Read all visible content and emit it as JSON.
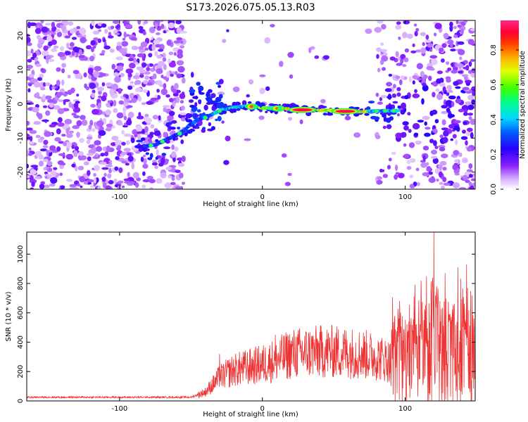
{
  "title": "S173.2026.075.05.13.R03",
  "chart_data": [
    {
      "type": "heatmap",
      "xlabel": "Height of straight line (km)",
      "ylabel": "Frequency (Hz)",
      "xlim": [
        -165,
        149
      ],
      "ylim": [
        -25,
        24.5
      ],
      "xticks": [
        -100,
        0,
        100
      ],
      "yticks": [
        -20,
        -10,
        0,
        10,
        20
      ],
      "colorbar": {
        "label": "Normalized spectral amplitude",
        "range": [
          0,
          0.97
        ],
        "ticks": [
          0.0,
          0.2,
          0.4,
          0.6,
          0.8
        ],
        "colors": [
          "#ffffff",
          "#b060ff",
          "#4000ff",
          "#0040ff",
          "#00e0ff",
          "#00ff40",
          "#ffff00",
          "#ff8000",
          "#ff0000",
          "#ff0060",
          "#ff2090"
        ]
      },
      "ridge": {
        "description": "dominant frequency ridge",
        "x": [
          -85,
          -75,
          -65,
          -57,
          -50,
          -45,
          -40,
          -35,
          -30,
          -25,
          -20,
          -15,
          -10,
          -5,
          0,
          10,
          20,
          30,
          40,
          50,
          60,
          70,
          75,
          80,
          85,
          90
        ],
        "y": [
          -12.5,
          -12,
          -10,
          -8.5,
          -6,
          -4.5,
          -4,
          -3,
          -2,
          -1.5,
          -1,
          -0.8,
          -0.7,
          -0.8,
          -1.2,
          -1.3,
          -1.5,
          -1.8,
          -1.8,
          -2,
          -2.2,
          -2.3,
          -2.2,
          -2.1,
          -2,
          -2
        ]
      },
      "peak": {
        "x": [
          20,
          70
        ],
        "y": [
          -1.6,
          -2.3
        ],
        "amplitude": 0.95
      }
    },
    {
      "type": "line",
      "xlabel": "Height of straight line (km)",
      "ylabel": "SNR (10 * v/v)",
      "xlim": [
        -165,
        149
      ],
      "ylim": [
        0,
        1150
      ],
      "xticks": [
        -100,
        0,
        100
      ],
      "yticks": [
        0,
        200,
        400,
        600,
        800,
        1000
      ],
      "color": "#ee3333",
      "envelope": {
        "x": [
          -165,
          -50,
          -40,
          -30,
          -20,
          -10,
          0,
          10,
          20,
          30,
          40,
          50,
          60,
          70,
          80,
          90,
          100,
          110,
          120,
          130,
          140,
          149
        ],
        "y": [
          25,
          25,
          60,
          160,
          210,
          230,
          250,
          280,
          320,
          330,
          335,
          335,
          330,
          320,
          300,
          270,
          280,
          300,
          320,
          320,
          310,
          300
        ]
      },
      "spikes": [
        {
          "x": 120,
          "y": 1150
        },
        {
          "x": 143,
          "y": 930
        },
        {
          "x": 137,
          "y": 910
        },
        {
          "x": 128,
          "y": 870
        },
        {
          "x": 115,
          "y": 850
        },
        {
          "x": 111,
          "y": 820
        },
        {
          "x": 9,
          "y": 450
        },
        {
          "x": -30,
          "y": 320
        }
      ]
    }
  ]
}
